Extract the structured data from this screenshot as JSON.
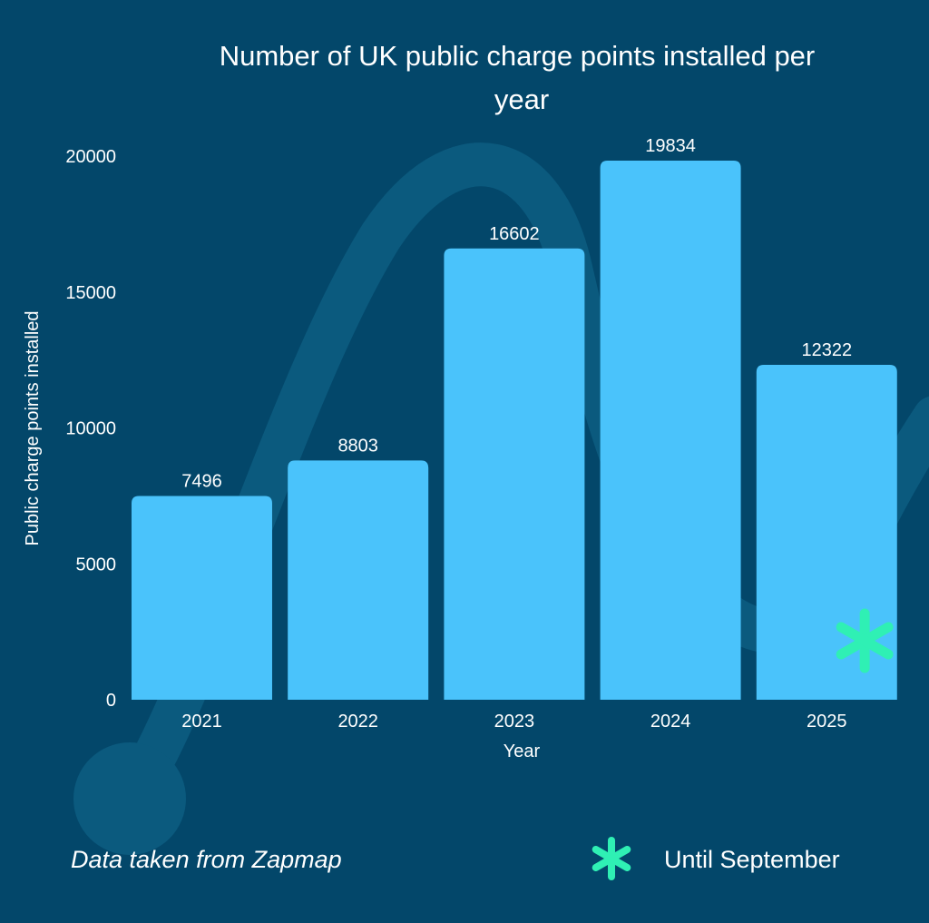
{
  "colors": {
    "background": "#03476a",
    "bar": "#4ac3fb",
    "text": "#ffffff",
    "asterisk": "#2ff0b4",
    "watermark": "#0b5a7e"
  },
  "chart_data": {
    "type": "bar",
    "title": "Number of UK public charge points installed per year",
    "title_lines": [
      "Number of UK public charge points installed per",
      "year"
    ],
    "xlabel": "Year",
    "ylabel": "Public charge points installed",
    "categories": [
      "2021",
      "2022",
      "2023",
      "2024",
      "2025"
    ],
    "values": [
      7496,
      8803,
      16602,
      19834,
      12322
    ],
    "data_labels": [
      "7496",
      "8803",
      "16602",
      "19834",
      "12322"
    ],
    "yticks": [
      0,
      5000,
      10000,
      15000,
      20000
    ],
    "ylim": [
      0,
      20000
    ],
    "grid": false,
    "asterisk_category": "2025"
  },
  "footer": {
    "source": "Data taken from Zapmap",
    "asterisk_icon": "asterisk-icon",
    "note": "Until September"
  }
}
